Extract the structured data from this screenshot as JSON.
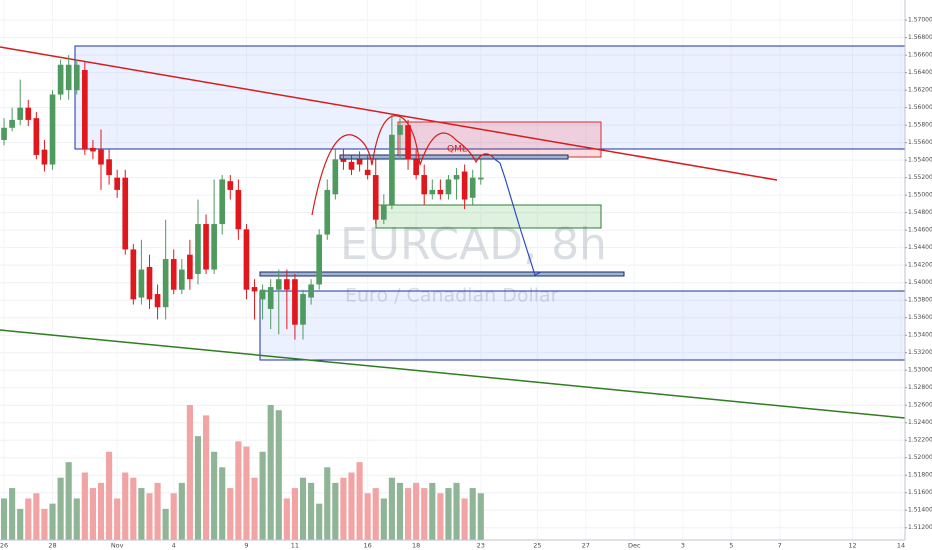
{
  "chart_data": {
    "type": "candlestick",
    "title": "EURCAD, 8h",
    "subtitle": "Euro / Canadian Dollar",
    "annotation": "QML",
    "up_color": "#4f9a5e",
    "down_color": "#e0181e",
    "volume_up_color": "#8fb596",
    "volume_down_color": "#f2a3a3",
    "grid": true,
    "categories": [
      "26",
      null,
      null,
      null,
      null,
      null,
      "28",
      null,
      null,
      null,
      null,
      null,
      null,
      null,
      "Nov",
      null,
      null,
      null,
      null,
      null,
      null,
      "4",
      null,
      null,
      null,
      null,
      null,
      null,
      null,
      null,
      "9",
      null,
      null,
      null,
      null,
      null,
      "11",
      null,
      null,
      null,
      null,
      null,
      null,
      null,
      null,
      "16",
      null,
      null,
      null,
      null,
      null,
      "18",
      null,
      null,
      null,
      null,
      null,
      null,
      null,
      "23",
      null,
      null,
      null,
      null,
      null,
      null,
      "25",
      null,
      null,
      null,
      null,
      null,
      "27",
      null,
      null,
      null,
      null,
      null,
      "Dec",
      null,
      null,
      null,
      null,
      null,
      "3",
      null,
      null,
      null,
      null,
      null,
      "5",
      null,
      null,
      null,
      null,
      null,
      "7",
      null,
      null,
      null,
      null,
      null,
      null,
      null,
      null,
      "12",
      null,
      null,
      null,
      null,
      null,
      "14"
    ],
    "open": [
      1.5563,
      1.5577,
      1.5586,
      1.56,
      1.5588,
      1.5552,
      1.5535,
      1.5615,
      1.562,
      1.562,
      1.5643,
      1.5554,
      1.5552,
      1.5541,
      1.552,
      1.552,
      1.5438,
      1.5383,
      1.5418,
      1.5387,
      1.5372,
      1.5427,
      1.5392,
      1.5432,
      1.541,
      1.5467,
      1.5415,
      1.5467,
      1.5516,
      1.5506,
      1.5461,
      1.5395,
      1.5381,
      1.537,
      1.5392,
      1.5404,
      1.5404,
      1.5352,
      1.5383,
      1.5398,
      1.5455,
      1.5501,
      1.5541,
      1.5538,
      1.5541,
      1.5529,
      1.5523,
      1.5472,
      1.5489,
      1.5569,
      1.558,
      1.5541,
      1.5523,
      1.5501,
      1.5506,
      1.5501,
      1.5518,
      1.5527,
      1.5497,
      1.5518,
      null,
      null,
      null,
      null,
      null,
      null,
      null,
      null,
      null,
      null,
      null,
      null,
      null,
      null,
      null,
      null,
      null,
      null,
      null,
      null,
      null,
      null,
      null,
      null,
      null,
      null,
      null,
      null,
      null,
      null,
      null,
      null,
      null,
      null,
      null,
      null,
      null,
      null,
      null,
      null,
      null,
      null,
      null,
      null,
      null,
      null,
      null,
      null,
      null,
      null,
      null,
      null
    ],
    "high": [
      1.5588,
      1.56,
      1.5632,
      1.5609,
      1.5595,
      1.5563,
      1.562,
      1.5655,
      1.566,
      1.5655,
      1.5652,
      1.5563,
      1.5575,
      1.5552,
      1.5529,
      1.5529,
      1.5444,
      1.5449,
      1.5432,
      1.5398,
      1.5472,
      1.5438,
      1.5427,
      1.5449,
      1.5495,
      1.5478,
      1.5518,
      1.5523,
      1.5523,
      1.5518,
      1.5467,
      1.5404,
      1.5398,
      1.5404,
      1.5415,
      1.5415,
      1.541,
      1.5392,
      1.5404,
      1.5461,
      1.5518,
      1.5552,
      1.5552,
      1.5546,
      1.555,
      1.5546,
      1.5541,
      1.5501,
      1.5592,
      1.5588,
      1.5586,
      1.5552,
      1.5535,
      1.5518,
      1.5518,
      1.5523,
      1.5531,
      1.5535,
      1.5529,
      1.5541,
      null,
      null,
      null,
      null,
      null,
      null,
      null,
      null,
      null,
      null,
      null,
      null,
      null,
      null,
      null,
      null,
      null,
      null,
      null,
      null,
      null,
      null,
      null,
      null,
      null,
      null,
      null,
      null,
      null,
      null,
      null,
      null,
      null,
      null,
      null,
      null,
      null,
      null,
      null,
      null,
      null,
      null,
      null,
      null,
      null,
      null,
      null,
      null,
      null,
      null,
      null,
      null
    ],
    "low": [
      1.5557,
      1.5573,
      1.558,
      1.5579,
      1.5541,
      1.5527,
      1.5529,
      1.5609,
      1.5609,
      1.5615,
      1.5546,
      1.5541,
      1.5506,
      1.5512,
      1.5497,
      1.5432,
      1.5375,
      1.5375,
      1.537,
      1.5358,
      1.5358,
      1.5387,
      1.5387,
      1.5392,
      1.5398,
      1.541,
      1.541,
      1.5455,
      1.5495,
      1.5449,
      1.5381,
      1.5358,
      1.5358,
      1.5347,
      1.5341,
      1.5347,
      1.5335,
      1.5335,
      1.5375,
      1.5392,
      1.5449,
      1.5495,
      1.5529,
      1.5523,
      1.5527,
      1.5518,
      1.5467,
      1.5467,
      1.5484,
      1.5541,
      1.5529,
      1.5518,
      1.5489,
      1.5495,
      1.5495,
      1.5495,
      1.5495,
      1.5484,
      1.5489,
      1.5512,
      null,
      null,
      null,
      null,
      null,
      null,
      null,
      null,
      null,
      null,
      null,
      null,
      null,
      null,
      null,
      null,
      null,
      null,
      null,
      null,
      null,
      null,
      null,
      null,
      null,
      null,
      null,
      null,
      null,
      null,
      null,
      null,
      null,
      null,
      null,
      null,
      null,
      null,
      null,
      null,
      null,
      null,
      null,
      null,
      null,
      null,
      null,
      null,
      null,
      null,
      null,
      null
    ],
    "close": [
      1.5577,
      1.5586,
      1.56,
      1.5586,
      1.5546,
      1.5535,
      1.5615,
      1.5649,
      1.5649,
      1.5649,
      1.5552,
      1.555,
      1.5535,
      1.5523,
      1.5506,
      1.5438,
      1.5381,
      1.5415,
      1.5381,
      1.5372,
      1.5427,
      1.5392,
      1.5415,
      1.5404,
      1.5467,
      1.5415,
      1.5467,
      1.5518,
      1.5506,
      1.5461,
      1.5392,
      1.539,
      1.5392,
      1.5395,
      1.5404,
      1.5392,
      1.5352,
      1.5387,
      1.5398,
      1.5455,
      1.5506,
      1.5541,
      1.5538,
      1.5529,
      1.5535,
      1.5523,
      1.5472,
      1.5489,
      1.5569,
      1.558,
      1.5541,
      1.5523,
      1.5501,
      1.5506,
      1.5501,
      1.5518,
      1.5523,
      1.5495,
      1.552,
      1.552,
      null,
      null,
      null,
      null,
      null,
      null,
      null,
      null,
      null,
      null,
      null,
      null,
      null,
      null,
      null,
      null,
      null,
      null,
      null,
      null,
      null,
      null,
      null,
      null,
      null,
      null,
      null,
      null,
      null,
      null,
      null,
      null,
      null,
      null,
      null,
      null,
      null,
      null,
      null,
      null,
      null,
      null,
      null,
      null,
      null,
      null,
      null,
      null,
      null,
      null,
      null,
      null
    ],
    "volume": [
      40,
      50,
      30,
      40,
      45,
      30,
      35,
      60,
      75,
      40,
      65,
      50,
      55,
      85,
      40,
      65,
      60,
      50,
      45,
      55,
      30,
      45,
      55,
      130,
      100,
      120,
      85,
      70,
      50,
      95,
      90,
      60,
      85,
      130,
      125,
      40,
      50,
      60,
      55,
      35,
      70,
      55,
      60,
      65,
      75,
      45,
      50,
      40,
      60,
      55,
      50,
      55,
      50,
      55,
      45,
      50,
      55,
      40,
      50,
      45,
      null,
      null,
      null,
      null,
      null,
      null,
      null,
      null,
      null,
      null,
      null,
      null,
      null,
      null,
      null,
      null,
      null,
      null,
      null,
      null,
      null,
      null,
      null,
      null,
      null,
      null,
      null,
      null,
      null,
      null,
      null,
      null,
      null,
      null,
      null,
      null,
      null,
      null,
      null,
      null,
      null,
      null,
      null,
      null,
      null,
      null,
      null,
      null,
      null,
      null,
      null,
      null
    ],
    "ylim": [
      1.5106,
      1.5723
    ],
    "yticks": [
      {
        "value": 1.512,
        "label": "1.51200"
      },
      {
        "value": 1.514,
        "label": "1.51400"
      },
      {
        "value": 1.516,
        "label": "1.51600"
      },
      {
        "value": 1.518,
        "label": "1.51800"
      },
      {
        "value": 1.52,
        "label": "1.52000"
      },
      {
        "value": 1.522,
        "label": "1.52200"
      },
      {
        "value": 1.524,
        "label": "1.52400"
      },
      {
        "value": 1.526,
        "label": "1.52600"
      },
      {
        "value": 1.528,
        "label": "1.52800"
      },
      {
        "value": 1.53,
        "label": "1.53000"
      },
      {
        "value": 1.532,
        "label": "1.53200"
      },
      {
        "value": 1.534,
        "label": "1.53400"
      },
      {
        "value": 1.536,
        "label": "1.53600"
      },
      {
        "value": 1.538,
        "label": "1.53800"
      },
      {
        "value": 1.54,
        "label": "1.54000"
      },
      {
        "value": 1.542,
        "label": "1.54200"
      },
      {
        "value": 1.544,
        "label": "1.54400"
      },
      {
        "value": 1.546,
        "label": "1.54600"
      },
      {
        "value": 1.548,
        "label": "1.54800"
      },
      {
        "value": 1.55,
        "label": "1.55000"
      },
      {
        "value": 1.552,
        "label": "1.55200"
      },
      {
        "value": 1.554,
        "label": "1.55400"
      },
      {
        "value": 1.556,
        "label": "1.55600"
      },
      {
        "value": 1.558,
        "label": "1.55800"
      },
      {
        "value": 1.56,
        "label": "1.56000"
      },
      {
        "value": 1.562,
        "label": "1.56200"
      },
      {
        "value": 1.564,
        "label": "1.56400"
      },
      {
        "value": 1.566,
        "label": "1.56600"
      },
      {
        "value": 1.568,
        "label": "1.56800"
      },
      {
        "value": 1.57,
        "label": "1.57000"
      }
    ]
  }
}
